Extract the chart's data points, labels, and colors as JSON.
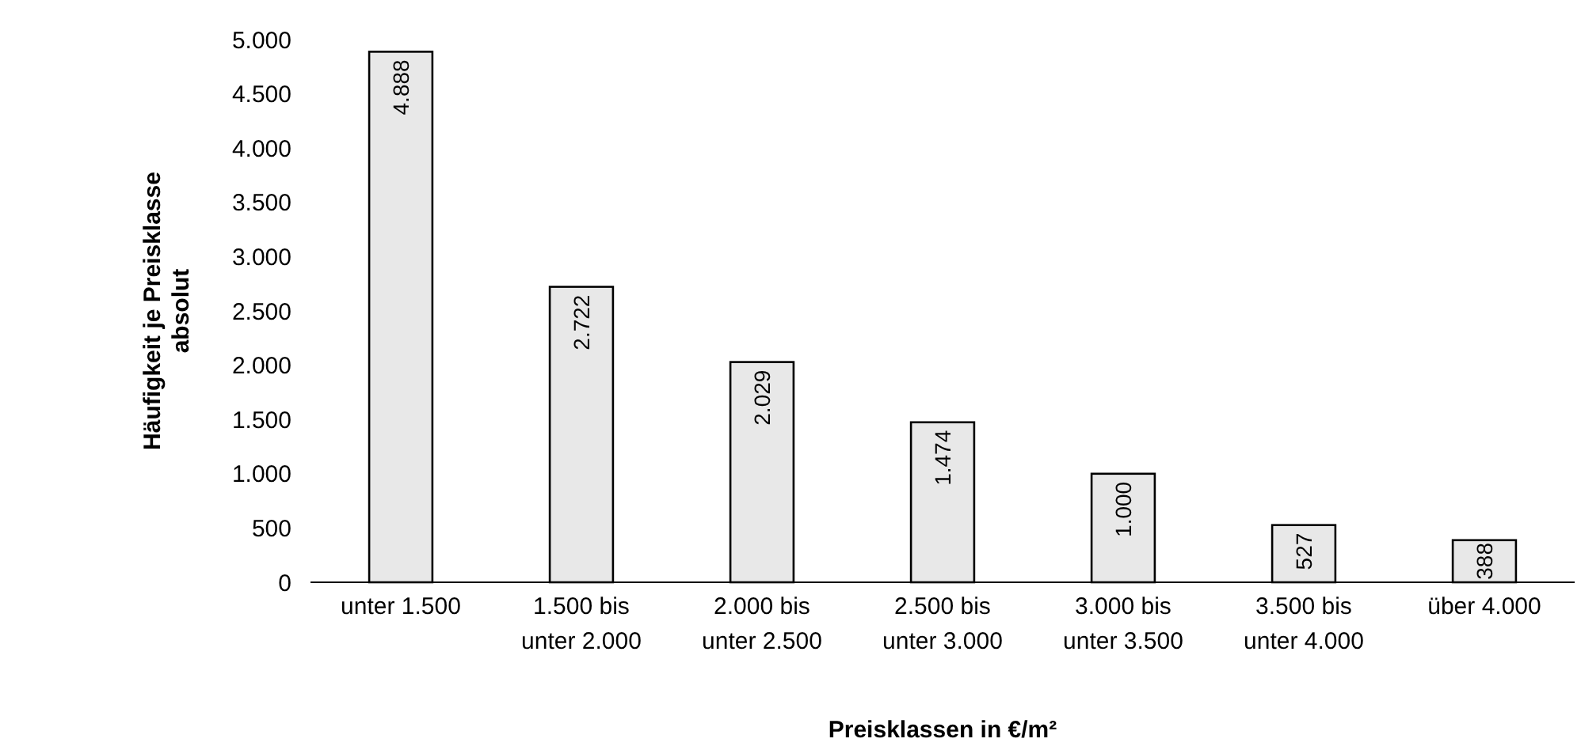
{
  "chart_data": {
    "type": "bar",
    "categories": [
      "unter 1.500",
      "1.500 bis\nunter 2.000",
      "2.000 bis\nunter 2.500",
      "2.500 bis\nunter 3.000",
      "3.000 bis\nunter 3.500",
      "3.500 bis\nunter 4.000",
      "über 4.000"
    ],
    "values": [
      4888,
      2722,
      2029,
      1474,
      1000,
      527,
      388
    ],
    "value_labels": [
      "4.888",
      "2.722",
      "2.029",
      "1.474",
      "1.000",
      "527",
      "388"
    ],
    "color": "#e8e8e8",
    "xlabel": "Preisklassen in €/m²",
    "ylabel": "Häufigkeit je Preisklasse\nabsolut",
    "ylim": [
      0,
      5000
    ],
    "yticks": [
      {
        "value": 0,
        "label": "0"
      },
      {
        "value": 500,
        "label": "500"
      },
      {
        "value": 1000,
        "label": "1.000"
      },
      {
        "value": 1500,
        "label": "1.500"
      },
      {
        "value": 2000,
        "label": "2.000"
      },
      {
        "value": 2500,
        "label": "2.500"
      },
      {
        "value": 3000,
        "label": "3.000"
      },
      {
        "value": 3500,
        "label": "3.500"
      },
      {
        "value": 4000,
        "label": "4.000"
      },
      {
        "value": 4500,
        "label": "4.500"
      },
      {
        "value": 5000,
        "label": "5.000"
      }
    ],
    "grid": false
  }
}
